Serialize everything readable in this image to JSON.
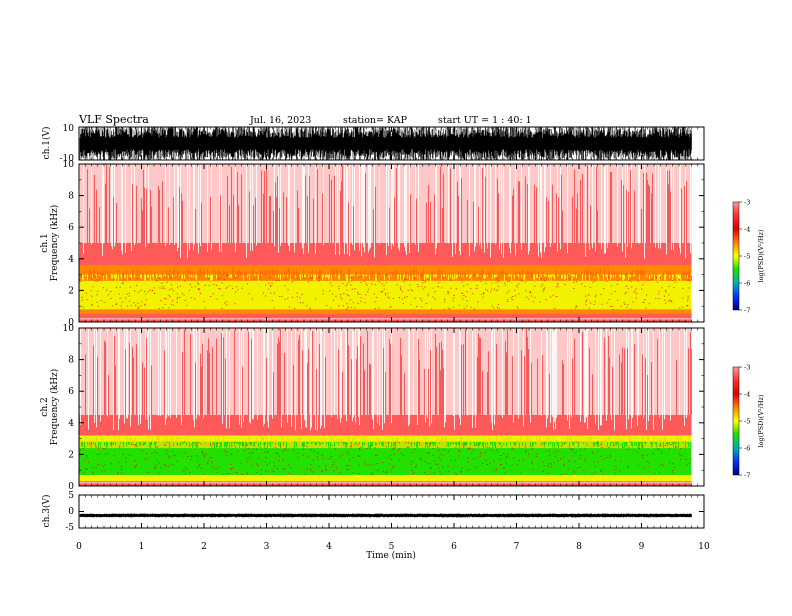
{
  "header": {
    "title": "VLF Spectra",
    "date": "Jul. 16, 2023",
    "station": "station= KAP",
    "start_ut": "start UT = 1 : 40: 1"
  },
  "chart_data": [
    {
      "type": "line",
      "panel": "ch1-waveform",
      "ylabel": "ch.1(V)",
      "ylim": [
        -10,
        10
      ],
      "yticks": [
        "10",
        "-10"
      ],
      "xlim": [
        0,
        10
      ],
      "data_end_min": 9.8,
      "color": "#000000",
      "description_values": {
        "typical_amplitude_V": 10,
        "clipped": true
      }
    },
    {
      "type": "heatmap",
      "panel": "ch1-spectrogram",
      "ylabel_line1": "ch.1",
      "ylabel_line2": "Frequency (kHz)",
      "ylim": [
        0,
        10
      ],
      "yticks": [
        "0",
        "2",
        "4",
        "6",
        "8",
        "10"
      ],
      "xlim": [
        0,
        10
      ],
      "data_end_min": 9.8,
      "bands_khz": {
        "yellow": [
          0.8,
          3.0
        ],
        "orange": [
          0.5,
          3.6
        ],
        "red_dense": [
          0,
          5.0
        ],
        "red_sparse": [
          5.0,
          10.0
        ]
      },
      "colorbar": {
        "label": "log(PSD)(V²/Hz)",
        "ticks": [
          "-3",
          "-4",
          "-5",
          "-6",
          "-7"
        ],
        "range": [
          -7,
          -3
        ]
      }
    },
    {
      "type": "heatmap",
      "panel": "ch2-spectrogram",
      "ylabel_line1": "ch.2",
      "ylabel_line2": "Frequency (kHz)",
      "ylim": [
        0,
        10
      ],
      "yticks": [
        "0",
        "2",
        "4",
        "6",
        "8",
        "10"
      ],
      "xlim": [
        0,
        10
      ],
      "data_end_min": 9.8,
      "bands_khz": {
        "green": [
          0.7,
          2.8
        ],
        "yellow": [
          0.3,
          3.2
        ],
        "red_dense": [
          0,
          4.5
        ],
        "red_sparse": [
          4.5,
          10.0
        ]
      },
      "colorbar": {
        "label": "log(PSD)(V²/Hz)",
        "ticks": [
          "-3",
          "-4",
          "-5",
          "-6",
          "-7"
        ],
        "range": [
          -7,
          -3
        ]
      }
    },
    {
      "type": "line",
      "panel": "ch3-waveform",
      "ylabel": "ch.3(V)",
      "ylim": [
        -5,
        5
      ],
      "yticks": [
        "5",
        "0",
        "-5"
      ],
      "xlim": [
        0,
        10
      ],
      "data_end_min": 9.8,
      "color": "#000000",
      "description_values": {
        "typical_offset_V": -1.2,
        "amplitude_V": 0.6
      }
    }
  ],
  "xaxis": {
    "label": "Time (min)",
    "ticks": [
      "0",
      "1",
      "2",
      "3",
      "4",
      "5",
      "6",
      "7",
      "8",
      "9",
      "10"
    ]
  },
  "colors": {
    "red": "#e80000",
    "orange": "#ff8800",
    "yellow": "#f2f200",
    "green": "#22e000",
    "axis": "#000000",
    "background": "#ffffff"
  }
}
